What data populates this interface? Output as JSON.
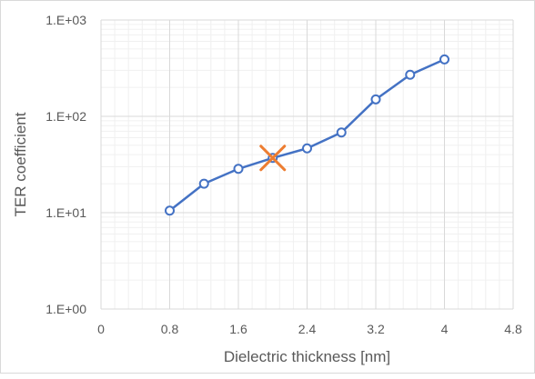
{
  "chart_data": {
    "type": "scatter",
    "title": "",
    "xlabel": "Dielectric thickness [nm]",
    "ylabel": "TER coefficient",
    "xlim": [
      0,
      4.8
    ],
    "ylim": [
      1,
      1000
    ],
    "yscale": "log",
    "grid": true,
    "legend": "none",
    "x_ticks": [
      "0",
      "0.8",
      "1.6",
      "2.4",
      "3.2",
      "4",
      "4.8"
    ],
    "y_ticks": [
      "1.E+00",
      "1.E+01",
      "1.E+02",
      "1.E+03"
    ],
    "series": [
      {
        "x": [
          0.8,
          1.2,
          1.6,
          2.0,
          2.4,
          2.8,
          3.2,
          3.6,
          4.0
        ],
        "y": [
          10.5,
          20,
          28.5,
          37,
          46.5,
          68,
          150,
          270,
          390
        ],
        "color": "#4472C4",
        "marker": "circle",
        "line": true
      }
    ],
    "highlight": {
      "x": 2.0,
      "y": 37,
      "marker": "x",
      "color": "#ED7D31"
    }
  }
}
